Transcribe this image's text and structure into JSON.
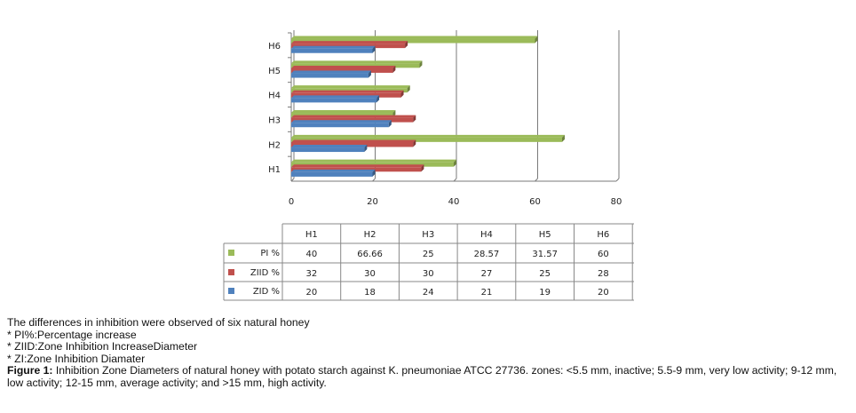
{
  "chart_data": {
    "type": "bar",
    "orientation": "horizontal",
    "categories": [
      "H1",
      "H2",
      "H3",
      "H4",
      "H5",
      "H6"
    ],
    "series": [
      {
        "name": "PI %",
        "color": "#9BBB59",
        "values": [
          40,
          66.66,
          25,
          28.57,
          31.57,
          60
        ]
      },
      {
        "name": "ZIID %",
        "color": "#C0504D",
        "values": [
          32,
          30,
          30,
          27,
          25,
          28
        ]
      },
      {
        "name": "ZID %",
        "color": "#4F81BD",
        "values": [
          20,
          18,
          24,
          21,
          19,
          20
        ]
      }
    ],
    "value_labels": {
      "PI %": [
        "40",
        "66.66",
        "25",
        "28.57",
        "31.57",
        "60"
      ],
      "ZIID %": [
        "32",
        "30",
        "30",
        "27",
        "25",
        "28"
      ],
      "ZID %": [
        "20",
        "18",
        "24",
        "21",
        "19",
        "20"
      ]
    },
    "xticks": [
      "0",
      "20",
      "40",
      "60",
      "80"
    ],
    "xlim": [
      0,
      80
    ],
    "grid": true,
    "legend": "data-table-below"
  },
  "caption": {
    "line1": "The differences in inhibition were observed of six natural honey",
    "note1": "* PI%:Percentage increase",
    "note2": "* ZIID:Zone Inhibition IncreaseDiameter",
    "note3": "* ZI:Zone Inhibition Diamater",
    "figure_label": "Figure 1:",
    "figure_text": " Inhibition Zone Diameters of natural honey with potato starch against K. pneumoniae ATCC 27736. zones: <5.5 mm, inactive; 5.5-9 mm, very low activity; 9-12 mm, low activity; 12-15 mm, average activity; and >15 mm, high activity."
  }
}
